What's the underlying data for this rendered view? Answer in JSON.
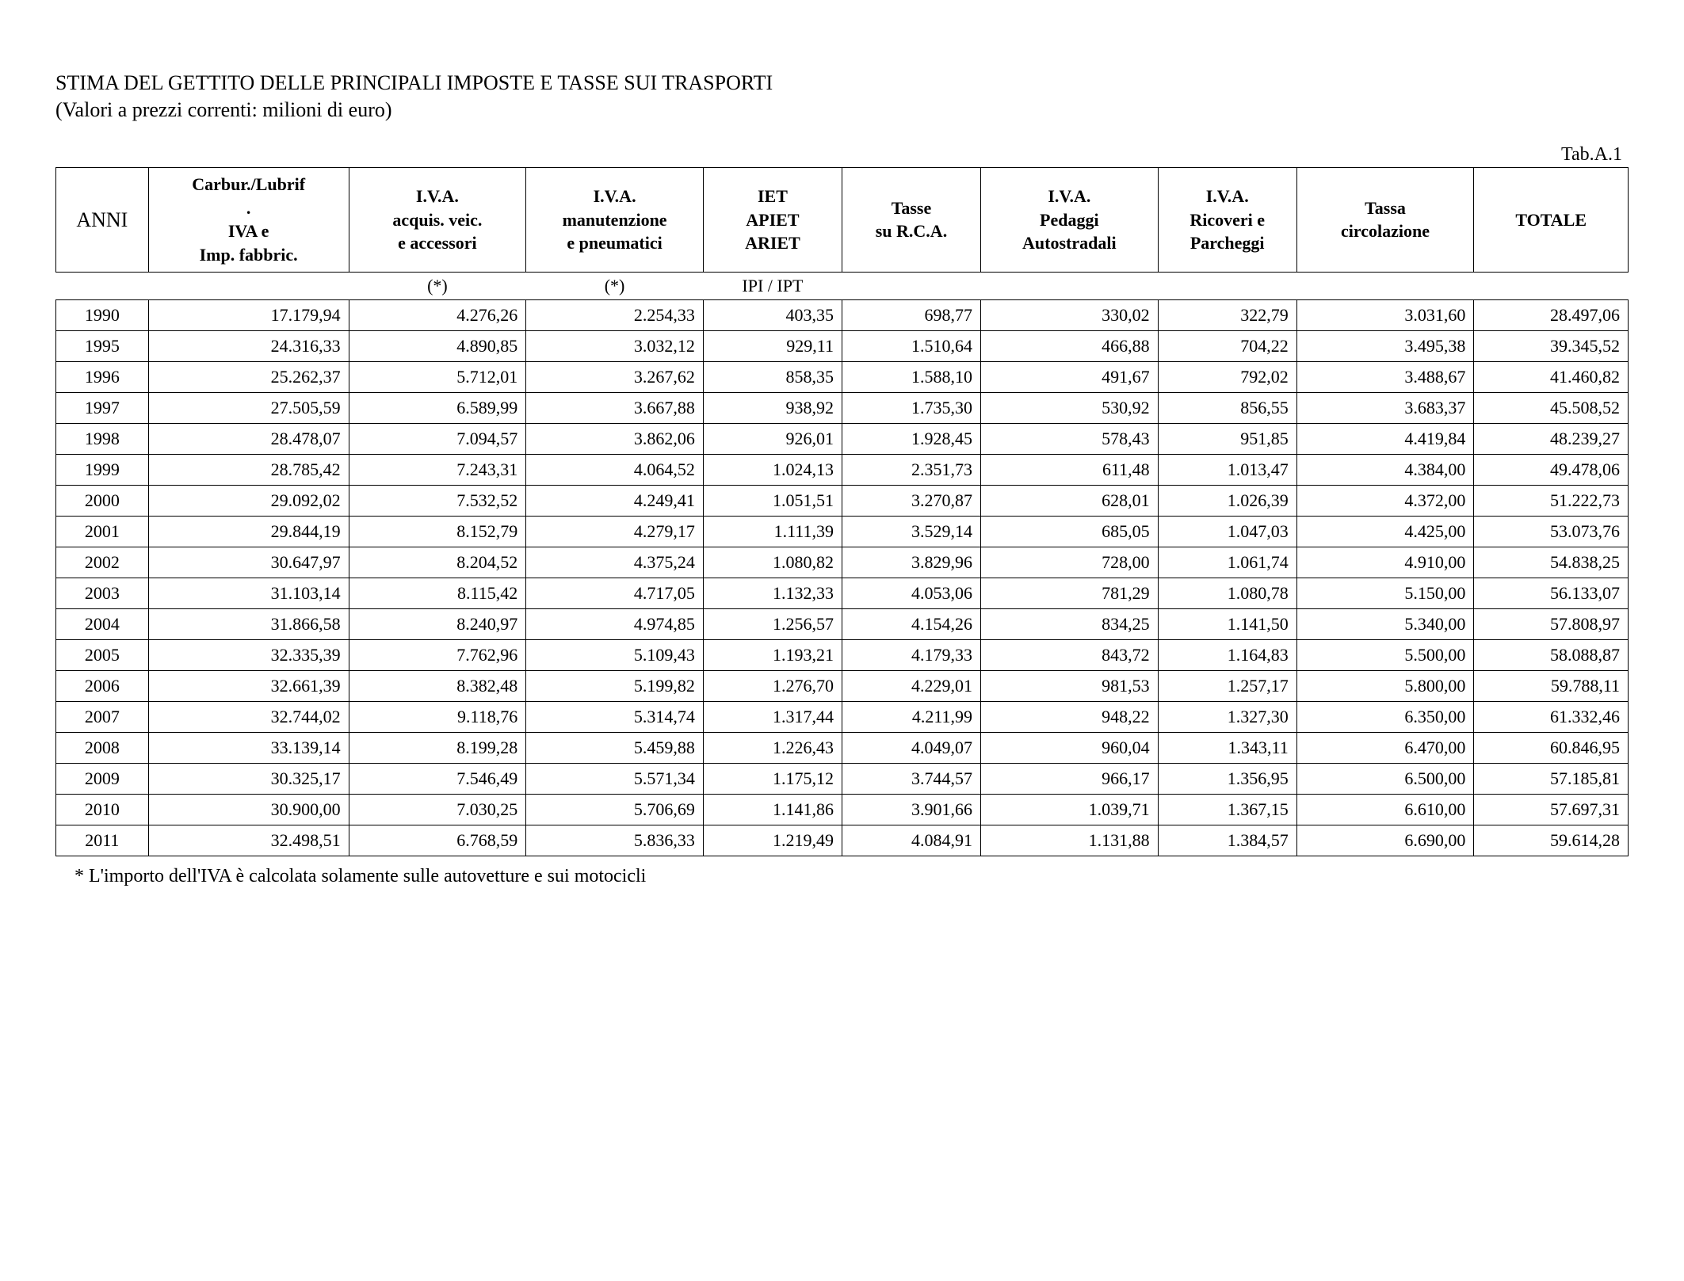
{
  "title": "STIMA DEL GETTITO DELLE PRINCIPALI IMPOSTE E TASSE SUI TRASPORTI",
  "subtitle": "(Valori a prezzi correnti: milioni di euro)",
  "tab_label": "Tab.A.1",
  "footnote": "* L'importo dell'IVA è calcolata solamente sulle autovetture e sui motocicli",
  "columns": [
    {
      "key": "anni",
      "header_lines": [
        "ANNI"
      ],
      "note": "",
      "class": "col-anni",
      "th_class": "anni"
    },
    {
      "key": "c1",
      "header_lines": [
        "Carbur./Lubrif",
        ".",
        "IVA e",
        "Imp. fabbric."
      ],
      "note": "",
      "class": "col-wide"
    },
    {
      "key": "c2",
      "header_lines": [
        "I.V.A.",
        "acquis. veic.",
        "e accessori"
      ],
      "note": "(*)",
      "class": "col-med"
    },
    {
      "key": "c3",
      "header_lines": [
        "I.V.A.",
        "manutenzione",
        "e pneumatici"
      ],
      "note": "(*)",
      "class": "col-med"
    },
    {
      "key": "c4",
      "header_lines": [
        "IET",
        "APIET",
        "ARIET"
      ],
      "note": "IPI / IPT",
      "class": "col-nar"
    },
    {
      "key": "c5",
      "header_lines": [
        "Tasse",
        "su R.C.A."
      ],
      "note": "",
      "class": "col-nar"
    },
    {
      "key": "c6",
      "header_lines": [
        "I.V.A.",
        "Pedaggi",
        "Autostradali"
      ],
      "note": "",
      "class": "col-med"
    },
    {
      "key": "c7",
      "header_lines": [
        "I.V.A.",
        "Ricoveri e",
        "Parcheggi"
      ],
      "note": "",
      "class": "col-nar"
    },
    {
      "key": "c8",
      "header_lines": [
        "Tassa",
        "circolazione"
      ],
      "note": "",
      "class": "col-med"
    },
    {
      "key": "c9",
      "header_lines": [
        "TOTALE"
      ],
      "note": "",
      "class": "col-tot"
    }
  ],
  "rows": [
    [
      "1990",
      "17.179,94",
      "4.276,26",
      "2.254,33",
      "403,35",
      "698,77",
      "330,02",
      "322,79",
      "3.031,60",
      "28.497,06"
    ],
    [
      "1995",
      "24.316,33",
      "4.890,85",
      "3.032,12",
      "929,11",
      "1.510,64",
      "466,88",
      "704,22",
      "3.495,38",
      "39.345,52"
    ],
    [
      "1996",
      "25.262,37",
      "5.712,01",
      "3.267,62",
      "858,35",
      "1.588,10",
      "491,67",
      "792,02",
      "3.488,67",
      "41.460,82"
    ],
    [
      "1997",
      "27.505,59",
      "6.589,99",
      "3.667,88",
      "938,92",
      "1.735,30",
      "530,92",
      "856,55",
      "3.683,37",
      "45.508,52"
    ],
    [
      "1998",
      "28.478,07",
      "7.094,57",
      "3.862,06",
      "926,01",
      "1.928,45",
      "578,43",
      "951,85",
      "4.419,84",
      "48.239,27"
    ],
    [
      "1999",
      "28.785,42",
      "7.243,31",
      "4.064,52",
      "1.024,13",
      "2.351,73",
      "611,48",
      "1.013,47",
      "4.384,00",
      "49.478,06"
    ],
    [
      "2000",
      "29.092,02",
      "7.532,52",
      "4.249,41",
      "1.051,51",
      "3.270,87",
      "628,01",
      "1.026,39",
      "4.372,00",
      "51.222,73"
    ],
    [
      "2001",
      "29.844,19",
      "8.152,79",
      "4.279,17",
      "1.111,39",
      "3.529,14",
      "685,05",
      "1.047,03",
      "4.425,00",
      "53.073,76"
    ],
    [
      "2002",
      "30.647,97",
      "8.204,52",
      "4.375,24",
      "1.080,82",
      "3.829,96",
      "728,00",
      "1.061,74",
      "4.910,00",
      "54.838,25"
    ],
    [
      "2003",
      "31.103,14",
      "8.115,42",
      "4.717,05",
      "1.132,33",
      "4.053,06",
      "781,29",
      "1.080,78",
      "5.150,00",
      "56.133,07"
    ],
    [
      "2004",
      "31.866,58",
      "8.240,97",
      "4.974,85",
      "1.256,57",
      "4.154,26",
      "834,25",
      "1.141,50",
      "5.340,00",
      "57.808,97"
    ],
    [
      "2005",
      "32.335,39",
      "7.762,96",
      "5.109,43",
      "1.193,21",
      "4.179,33",
      "843,72",
      "1.164,83",
      "5.500,00",
      "58.088,87"
    ],
    [
      "2006",
      "32.661,39",
      "8.382,48",
      "5.199,82",
      "1.276,70",
      "4.229,01",
      "981,53",
      "1.257,17",
      "5.800,00",
      "59.788,11"
    ],
    [
      "2007",
      "32.744,02",
      "9.118,76",
      "5.314,74",
      "1.317,44",
      "4.211,99",
      "948,22",
      "1.327,30",
      "6.350,00",
      "61.332,46"
    ],
    [
      "2008",
      "33.139,14",
      "8.199,28",
      "5.459,88",
      "1.226,43",
      "4.049,07",
      "960,04",
      "1.343,11",
      "6.470,00",
      "60.846,95"
    ],
    [
      "2009",
      "30.325,17",
      "7.546,49",
      "5.571,34",
      "1.175,12",
      "3.744,57",
      "966,17",
      "1.356,95",
      "6.500,00",
      "57.185,81"
    ],
    [
      "2010",
      "30.900,00",
      "7.030,25",
      "5.706,69",
      "1.141,86",
      "3.901,66",
      "1.039,71",
      "1.367,15",
      "6.610,00",
      "57.697,31"
    ],
    [
      "2011",
      "32.498,51",
      "6.768,59",
      "5.836,33",
      "1.219,49",
      "4.084,91",
      "1.131,88",
      "1.384,57",
      "6.690,00",
      "59.614,28"
    ]
  ],
  "style": {
    "font_family": "Times New Roman",
    "title_fontsize": 26,
    "header_fontsize": 22,
    "cell_fontsize": 22,
    "footnote_fontsize": 24,
    "border_color": "#000000",
    "background_color": "#ffffff",
    "text_color": "#000000"
  }
}
